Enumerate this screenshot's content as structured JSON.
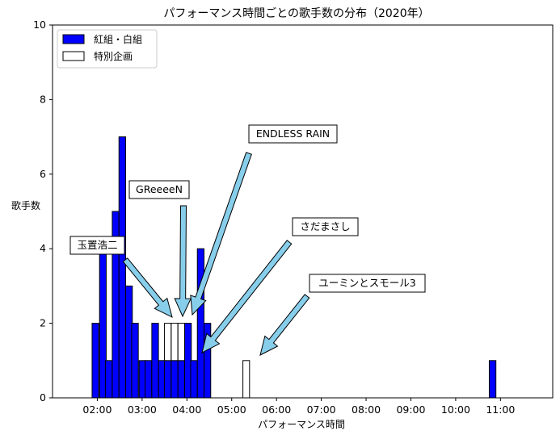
{
  "chart_data": {
    "type": "bar",
    "title": "パフォーマンス時間ごとの歌手数の分布（2020年）",
    "xlabel": "パフォーマンス時間",
    "ylabel": "歌手数",
    "ylim": [
      0,
      10
    ],
    "yticks": [
      "0",
      "2",
      "4",
      "6",
      "8",
      "10"
    ],
    "xticks": [
      "02:00",
      "03:00",
      "04:00",
      "05:00",
      "06:00",
      "07:00",
      "08:00",
      "09:00",
      "10:00",
      "11:00"
    ],
    "xtick_values_min": [
      120,
      180,
      240,
      300,
      360,
      420,
      480,
      540,
      600,
      660
    ],
    "xlim_min": [
      60,
      730
    ],
    "legend_position": "top-left",
    "series": [
      {
        "name": "紅組・白組",
        "color": "#0000ff",
        "bins_start_min": [
          113,
          123,
          131,
          140,
          149,
          158,
          166,
          176,
          184,
          193,
          202,
          210,
          219,
          228,
          237,
          245,
          254,
          263,
          272,
          280
        ],
        "bin_width_min": 8.9,
        "values": [
          2,
          4,
          1,
          5,
          7,
          3,
          2,
          1,
          1,
          2,
          1,
          1,
          1,
          1,
          2,
          1,
          4,
          2,
          0,
          0
        ]
      },
      {
        "name": "特別企画",
        "color": "#ffffff",
        "bins_start_min": [
          131,
          210,
          219,
          228,
          237,
          245,
          254,
          315
        ],
        "bin_width_min": 8.9,
        "values": [
          0,
          1,
          1,
          1,
          0,
          0,
          0,
          1
        ]
      }
    ],
    "outlier_bar": {
      "x_min": 645,
      "value": 1
    },
    "annotations": [
      {
        "text": "ENDLESS RAIN"
      },
      {
        "text": "GReeeeN"
      },
      {
        "text": "さだまさし"
      },
      {
        "text": "玉置浩二"
      },
      {
        "text": "ユーミンとスモール3"
      }
    ]
  }
}
